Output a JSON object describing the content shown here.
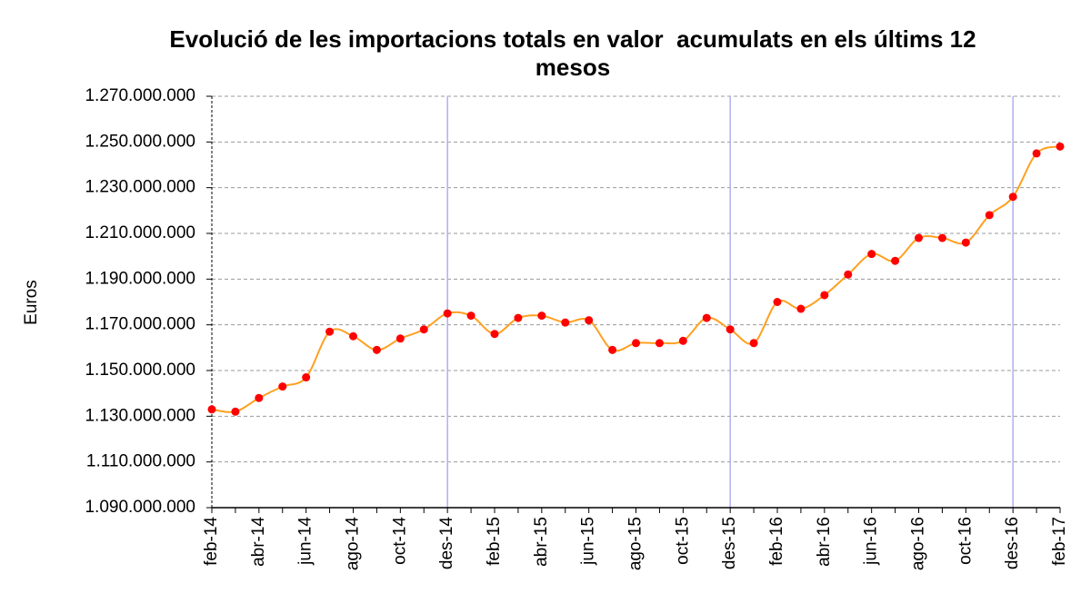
{
  "chart_data": {
    "type": "line",
    "title": "Evolució de les importacions totals en valor  acumulats en els últims 12 mesos",
    "y_label": "Euros",
    "categories": [
      "feb-14",
      null,
      "abr-14",
      null,
      "jun-14",
      null,
      "ago-14",
      null,
      "oct-14",
      null,
      "des-14",
      null,
      "feb-15",
      null,
      "abr-15",
      null,
      "jun-15",
      null,
      "ago-15",
      null,
      "oct-15",
      null,
      "des-15",
      null,
      "feb-16",
      null,
      "abr-16",
      null,
      "jun-16",
      null,
      "ago-16",
      null,
      "oct-16",
      null,
      "des-16",
      null,
      "feb-17"
    ],
    "series": [
      {
        "color": "#ffa020",
        "marker_color": "#ff0000",
        "values": [
          1133000000,
          1132000000,
          1138000000,
          1143000000,
          1147000000,
          1167000000,
          1165000000,
          1159000000,
          1164000000,
          1168000000,
          1175000000,
          1174000000,
          1166000000,
          1173000000,
          1174000000,
          1171000000,
          1172000000,
          1159000000,
          1162000000,
          1162000000,
          1163000000,
          1173000000,
          1168000000,
          1162000000,
          1180000000,
          1177000000,
          1183000000,
          1192000000,
          1201000000,
          1198000000,
          1208000000,
          1208000000,
          1206000000,
          1218000000,
          1226000000,
          1245000000,
          1248000000
        ]
      }
    ],
    "ylim": [
      1090000000,
      1270000000
    ],
    "yticks": [
      {
        "value": 1090000000,
        "label": "1.090.000.000"
      },
      {
        "value": 1110000000,
        "label": "1.110.000.000"
      },
      {
        "value": 1130000000,
        "label": "1.130.000.000"
      },
      {
        "value": 1150000000,
        "label": "1.150.000.000"
      },
      {
        "value": 1170000000,
        "label": "1.170.000.000"
      },
      {
        "value": 1190000000,
        "label": "1.190.000.000"
      },
      {
        "value": 1210000000,
        "label": "1.210.000.000"
      },
      {
        "value": 1230000000,
        "label": "1.230.000.000"
      },
      {
        "value": 1250000000,
        "label": "1.250.000.000"
      },
      {
        "value": 1270000000,
        "label": "1.270.000.000"
      }
    ],
    "grid": true
  }
}
